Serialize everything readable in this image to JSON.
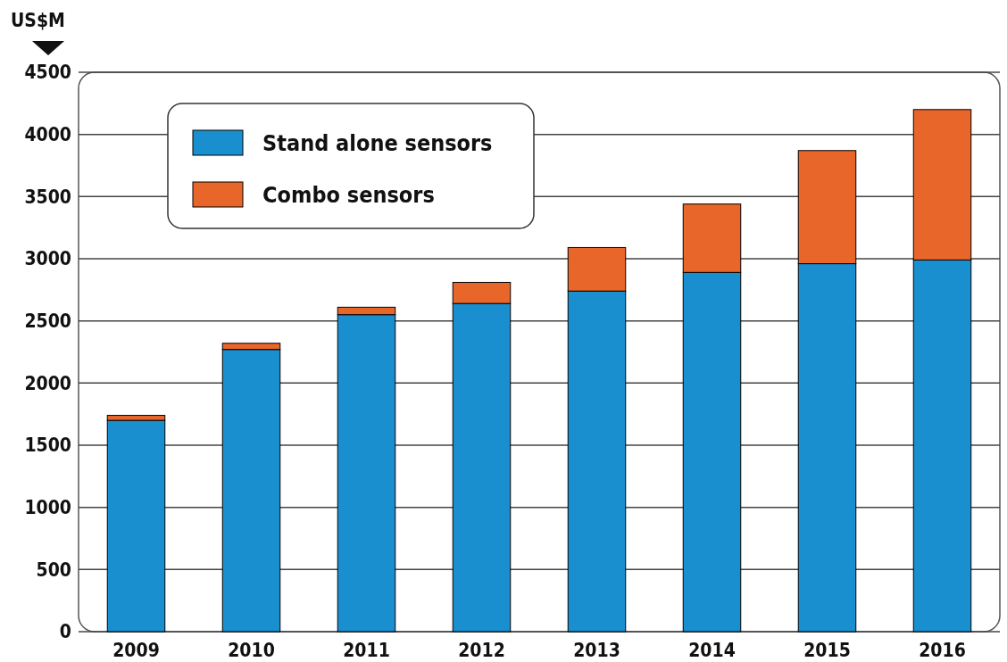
{
  "chart_data": {
    "type": "bar",
    "ylabel": "US$M",
    "stacked": true,
    "categories": [
      "2009",
      "2010",
      "2011",
      "2012",
      "2013",
      "2014",
      "2015",
      "2016"
    ],
    "series": [
      {
        "name": "Stand alone sensors",
        "color": "#1a8fd0",
        "values": [
          1700,
          2270,
          2550,
          2640,
          2740,
          2890,
          2960,
          2990
        ]
      },
      {
        "name": "Combo sensors",
        "color": "#e8662a",
        "values": [
          40,
          50,
          60,
          170,
          350,
          550,
          910,
          1210
        ]
      }
    ],
    "ylim": [
      0,
      4500
    ],
    "yticks": [
      0,
      500,
      1000,
      1500,
      2000,
      2500,
      3000,
      3500,
      4000,
      4500
    ],
    "grid": "y",
    "legend": "top left"
  }
}
